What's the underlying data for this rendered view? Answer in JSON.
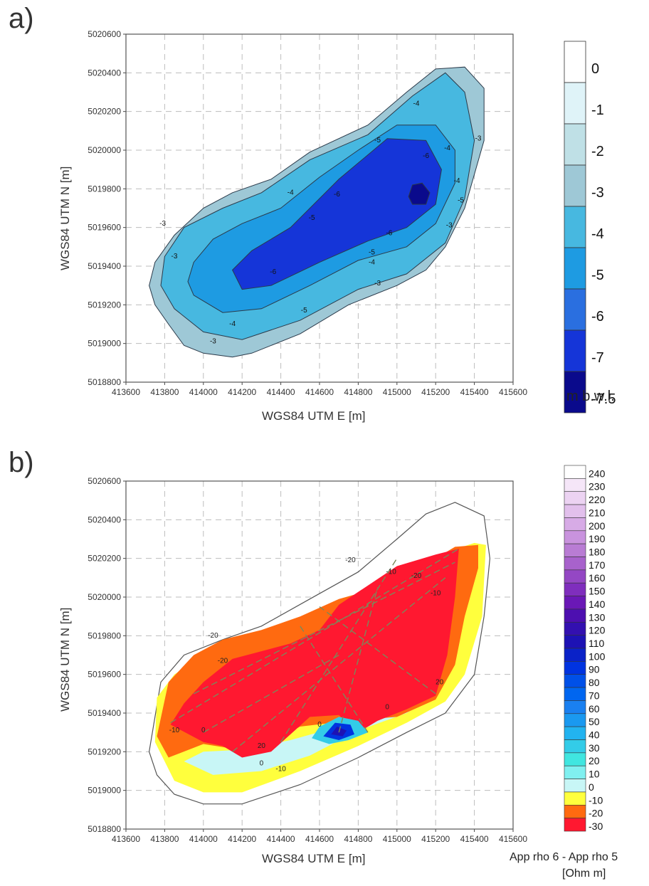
{
  "chart_data": [
    {
      "panel": "a)",
      "type": "heatmap",
      "subtype": "filled contour map",
      "xlabel": "WGS84 UTM E [m]",
      "ylabel": "WGS84 UTM N [m]",
      "xlim": [
        413600,
        415600
      ],
      "ylim": [
        5018800,
        5020600
      ],
      "xticks": [
        "413600",
        "413800",
        "414000",
        "414200",
        "414400",
        "414600",
        "414800",
        "415000",
        "415200",
        "415400",
        "415600"
      ],
      "yticks": [
        "5018800",
        "5019000",
        "5019200",
        "5019400",
        "5019600",
        "5019800",
        "5020000",
        "5020200",
        "5020400",
        "5020600"
      ],
      "grid": true,
      "colorbar": {
        "title": "m b.w.l.",
        "labels": [
          "0",
          "-1",
          "-2",
          "-3",
          "-4",
          "-5",
          "-6",
          "-7",
          "-7.5"
        ],
        "colors": [
          "#ffffff",
          "#dff3f8",
          "#bfe0e6",
          "#9ec8d6",
          "#47b8e0",
          "#1e9be2",
          "#2a6fe0",
          "#1535d8",
          "#0a0a8c"
        ]
      },
      "contours": [
        {
          "level": -3,
          "x": [
            413820,
            413900,
            414000,
            414150,
            414250,
            414500,
            414750,
            415000,
            415150,
            415250,
            415350,
            415450,
            415450,
            415350,
            415200,
            415050,
            414850,
            414550,
            414350,
            414150,
            414000,
            413850,
            413750,
            413720,
            413750,
            413820
          ],
          "y": [
            5019100,
            5018990,
            5018950,
            5018930,
            5018950,
            5019050,
            5019200,
            5019300,
            5019380,
            5019500,
            5019700,
            5020050,
            5020320,
            5020430,
            5020420,
            5020300,
            5020130,
            5019990,
            5019850,
            5019780,
            5019700,
            5019560,
            5019420,
            5019300,
            5019200,
            5019100
          ],
          "fill": "#9ec8d6"
        },
        {
          "level": -4,
          "x": [
            413850,
            414000,
            414200,
            414500,
            414800,
            415050,
            415250,
            415350,
            415400,
            415350,
            415250,
            415080,
            414850,
            414550,
            414300,
            414100,
            413900,
            413800,
            413780,
            413850
          ],
          "y": [
            5019180,
            5019060,
            5019020,
            5019120,
            5019280,
            5019360,
            5019520,
            5019750,
            5020050,
            5020300,
            5020400,
            5020280,
            5020080,
            5019950,
            5019780,
            5019700,
            5019600,
            5019450,
            5019300,
            5019180
          ],
          "fill": "#47b8e0"
        },
        {
          "level": -5,
          "x": [
            413950,
            414100,
            414300,
            414550,
            414800,
            415050,
            415200,
            415300,
            415300,
            415200,
            415000,
            414800,
            414600,
            414400,
            414200,
            414050,
            413950,
            413920,
            413950
          ],
          "y": [
            5019250,
            5019160,
            5019180,
            5019300,
            5019430,
            5019500,
            5019620,
            5019830,
            5020000,
            5020130,
            5020130,
            5020000,
            5019860,
            5019700,
            5019620,
            5019540,
            5019420,
            5019320,
            5019250
          ],
          "fill": "#1e9be2"
        },
        {
          "level": -6,
          "x": [
            414200,
            414350,
            414600,
            414850,
            415050,
            415200,
            415230,
            415150,
            414950,
            414700,
            414450,
            414250,
            414150,
            414200
          ],
          "y": [
            5019280,
            5019300,
            5019420,
            5019530,
            5019600,
            5019720,
            5019900,
            5020050,
            5020060,
            5019850,
            5019600,
            5019480,
            5019380,
            5019280
          ],
          "fill": "#1535d8"
        },
        {
          "level": -7,
          "x": [
            415080,
            415150,
            415170,
            415130,
            415080,
            415060,
            415080
          ],
          "y": [
            5019720,
            5019720,
            5019780,
            5019830,
            5019820,
            5019760,
            5019720
          ],
          "fill": "#0a0a8c"
        }
      ],
      "contour_labels": [
        "-3",
        "-3",
        "-3",
        "-3",
        "-3",
        "-3",
        "-4",
        "-4",
        "-4",
        "-4",
        "-4",
        "-4",
        "-5",
        "-5",
        "-5",
        "-5",
        "-5",
        "-6",
        "-6",
        "-6",
        "-6"
      ]
    },
    {
      "panel": "b)",
      "type": "heatmap",
      "subtype": "filled contour map",
      "xlabel": "WGS84 UTM E [m]",
      "ylabel": "WGS84 UTM N [m]",
      "xlim": [
        413600,
        415600
      ],
      "ylim": [
        5018800,
        5020600
      ],
      "xticks": [
        "413600",
        "413800",
        "414000",
        "414200",
        "414400",
        "414600",
        "414800",
        "415000",
        "415200",
        "415400",
        "415600"
      ],
      "yticks": [
        "5018800",
        "5019000",
        "5019200",
        "5019400",
        "5019600",
        "5019800",
        "5020000",
        "5020200",
        "5020400",
        "5020600"
      ],
      "grid": true,
      "colorbar": {
        "title": "App rho 6 - App rho 5",
        "units": "[Ohm m]",
        "labels": [
          "240",
          "230",
          "220",
          "210",
          "200",
          "190",
          "180",
          "170",
          "160",
          "150",
          "140",
          "130",
          "120",
          "110",
          "100",
          "90",
          "80",
          "70",
          "60",
          "50",
          "40",
          "30",
          "20",
          "10",
          "0",
          "-10",
          "-20",
          "-30"
        ],
        "colors": [
          "#ffffff",
          "#f5e6f8",
          "#ecd3f2",
          "#e2c0ec",
          "#d7abe6",
          "#c993de",
          "#b97cd4",
          "#a862cc",
          "#9447c4",
          "#7f2ebd",
          "#6a18b6",
          "#4d0fb0",
          "#3310b0",
          "#1d12b4",
          "#0a22c8",
          "#0033e0",
          "#0050e8",
          "#0066f0",
          "#1a80f0",
          "#1a99f0",
          "#22b3f0",
          "#33cce8",
          "#40e6e0",
          "#80f0f0",
          "#c8f6f6",
          "#ffff3d",
          "#ff6a10",
          "#ff1830"
        ],
        "ylim": [
          -30,
          240
        ]
      },
      "contour_labels": [
        "-20",
        "-20",
        "-20",
        "-20",
        "-10",
        "-10",
        "-10",
        "-10",
        "0",
        "0",
        "0",
        "0",
        "20",
        "20"
      ]
    }
  ]
}
